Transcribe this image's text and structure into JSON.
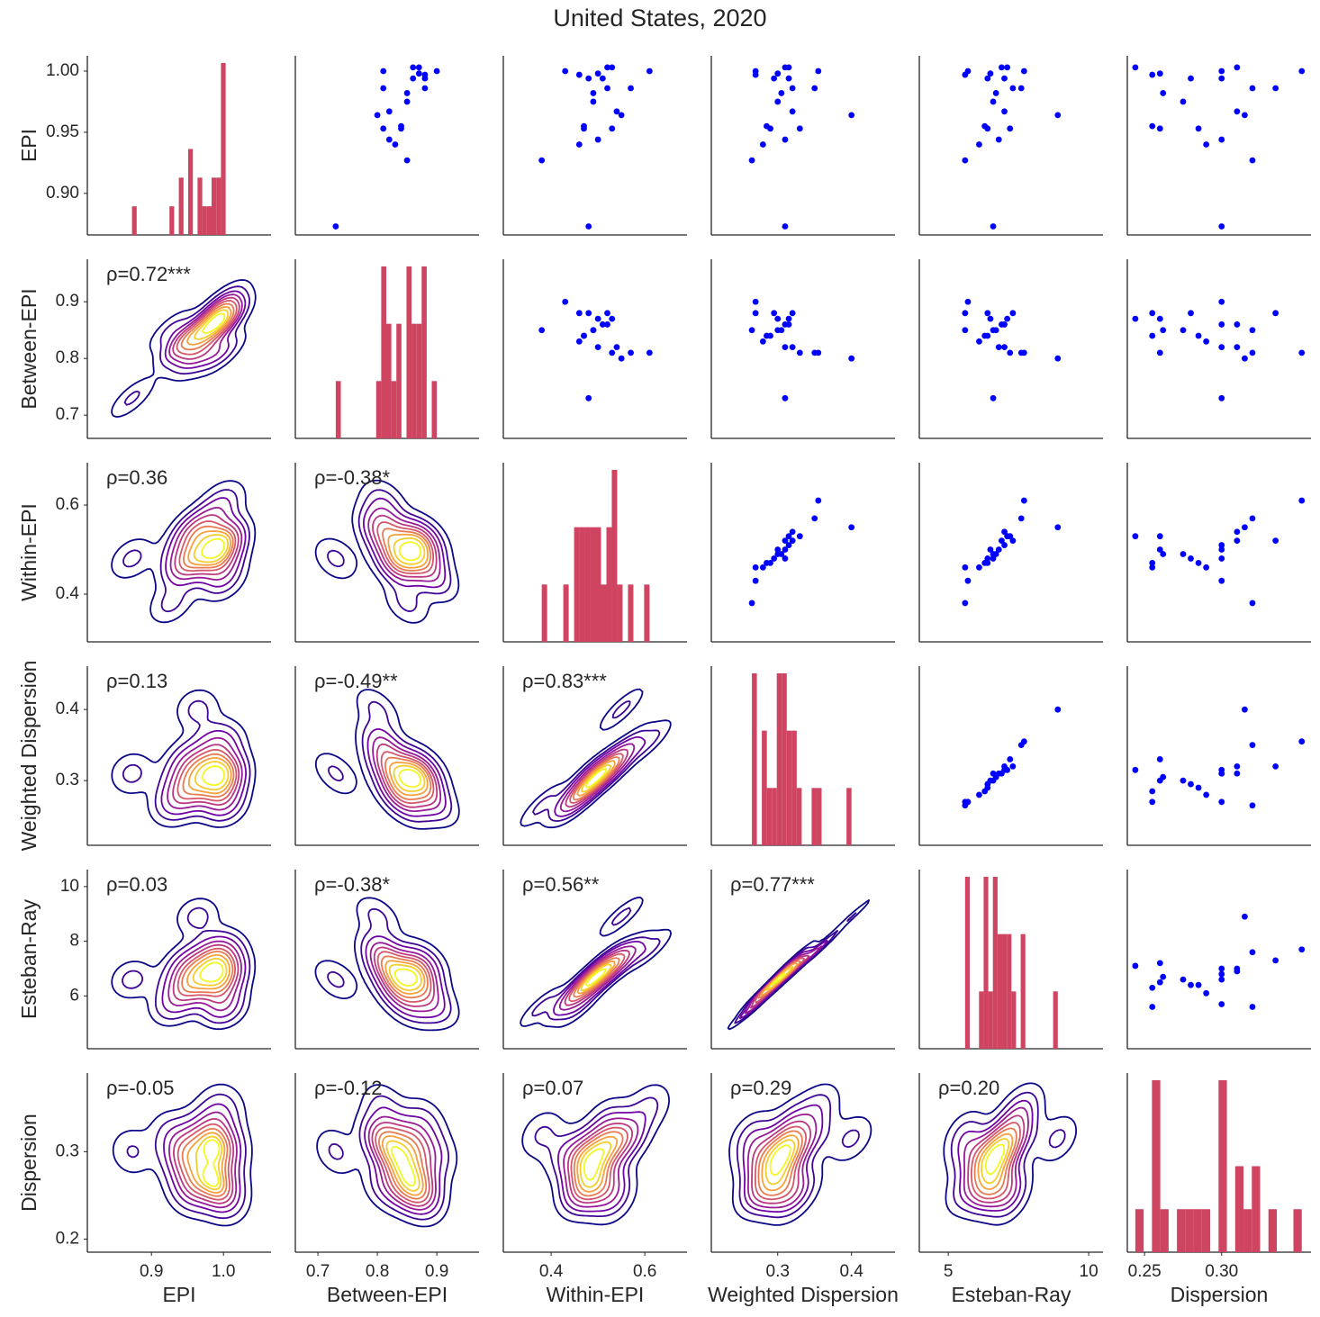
{
  "chart_data": {
    "type": "pairplot",
    "title": "United States, 2020",
    "scatter_color": "#0000ff",
    "hist_color": "#cf4461",
    "hist_bins": 20,
    "kde_levels": 10,
    "kde_thresh": 0.05,
    "kde_cmap": [
      "#0d0887",
      "#7e03a8",
      "#cc4778",
      "#f89540",
      "#f0f921"
    ],
    "variables": [
      {
        "name": "EPI",
        "values": [
          0.873,
          0.964,
          1.0,
          0.986,
          0.953,
          0.967,
          0.944,
          0.94,
          0.955,
          0.953,
          0.927,
          0.975,
          0.982,
          0.994,
          1.003,
          1.003,
          0.998,
          0.997,
          0.986,
          0.994,
          1.0
        ],
        "xlim": [
          0.811,
          1.066
        ],
        "xticks": [
          0.9,
          {
            "value": 1.0,
            "label": "1.0"
          }
        ],
        "ylim": [
          0.866,
          1.0125
        ],
        "yticks": [
          {
            "value": 0.9,
            "label": "0.90"
          },
          0.95,
          {
            "value": 1.0,
            "label": "1.00"
          }
        ]
      },
      {
        "name": "Between-EPI",
        "values": [
          0.73,
          0.8,
          0.81,
          0.81,
          0.81,
          0.82,
          0.82,
          0.83,
          0.84,
          0.84,
          0.85,
          0.85,
          0.85,
          0.86,
          0.86,
          0.87,
          0.87,
          0.88,
          0.88,
          0.88,
          0.9
        ],
        "xlim": [
          0.662,
          0.971
        ],
        "xticks": [
          0.7,
          0.8,
          0.9
        ],
        "ylim": [
          0.659,
          0.975
        ],
        "yticks": [
          0.7,
          0.8,
          0.9
        ]
      },
      {
        "name": "Within-EPI",
        "values": [
          0.48,
          0.55,
          0.61,
          0.57,
          0.53,
          0.54,
          0.5,
          0.46,
          0.47,
          0.47,
          0.38,
          0.49,
          0.49,
          0.51,
          0.52,
          0.53,
          0.5,
          0.46,
          0.52,
          0.48,
          0.43
        ],
        "xlim": [
          0.298,
          0.69
        ],
        "xticks": [
          0.4,
          0.6
        ],
        "ylim": [
          0.293,
          0.695
        ],
        "yticks": [
          0.4,
          0.6
        ]
      },
      {
        "name": "Weighted Dispersion",
        "values": [
          0.31,
          0.4,
          0.355,
          0.35,
          0.33,
          0.32,
          0.31,
          0.28,
          0.285,
          0.29,
          0.265,
          0.3,
          0.305,
          0.315,
          0.31,
          0.315,
          0.3,
          0.27,
          0.32,
          0.295,
          0.27
        ],
        "xlim": [
          0.21,
          0.459
        ],
        "xticks": [
          0.3,
          0.4
        ],
        "ylim": [
          0.209,
          0.461
        ],
        "yticks": [
          0.3,
          0.4
        ]
      },
      {
        "name": "Esteban-Ray",
        "values": [
          6.6,
          8.9,
          7.7,
          7.6,
          7.2,
          7.0,
          6.8,
          6.1,
          6.3,
          6.4,
          5.6,
          6.6,
          6.7,
          7.0,
          6.9,
          7.1,
          6.5,
          5.6,
          7.3,
          6.4,
          5.7
        ],
        "xlim": [
          3.97,
          10.51
        ],
        "xticks": [
          5,
          10
        ],
        "ylim": [
          4.07,
          10.62
        ],
        "yticks": [
          6,
          8,
          10
        ]
      },
      {
        "name": "Dispersion",
        "values": [
          0.3,
          0.315,
          0.352,
          0.32,
          0.26,
          0.31,
          0.3,
          0.29,
          0.255,
          0.285,
          0.32,
          0.275,
          0.262,
          0.3,
          0.31,
          0.244,
          0.26,
          0.255,
          0.335,
          0.28,
          0.3
        ],
        "xlim": [
          0.2388,
          0.358
        ],
        "xticks": [
          0.25,
          {
            "value": 0.3,
            "label": "0.30"
          }
        ],
        "ylim": [
          0.185,
          0.39
        ],
        "yticks": [
          0.2,
          0.3
        ]
      }
    ],
    "annotations": [
      [
        "ρ=0.72***"
      ],
      [
        "ρ=0.36",
        "ρ=-0.38*"
      ],
      [
        "ρ=0.13",
        "ρ=-0.49**",
        "ρ=0.83***"
      ],
      [
        "ρ=0.03",
        "ρ=-0.38*",
        "ρ=0.56**",
        "ρ=0.77***"
      ],
      [
        "ρ=-0.05",
        "ρ=-0.12",
        "ρ=0.07",
        "ρ=0.29",
        "ρ=0.20"
      ]
    ]
  }
}
